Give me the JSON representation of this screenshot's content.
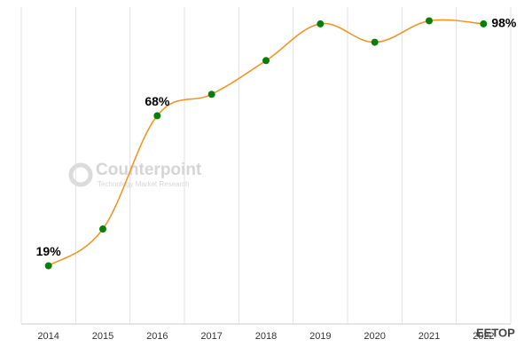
{
  "chart_data": {
    "type": "line",
    "categories": [
      "2014",
      "2015",
      "2016",
      "2017",
      "2018",
      "2019",
      "2020",
      "2021",
      "2022"
    ],
    "values": [
      19,
      31,
      68,
      75,
      86,
      98,
      92,
      99,
      98
    ],
    "value_labels": [
      "19%",
      null,
      "68%",
      null,
      null,
      null,
      null,
      null,
      "98%"
    ],
    "line_color": "#f39019",
    "marker_color": "#0a7d0a",
    "ylim": [
      0,
      100
    ],
    "grid": true,
    "watermark": {
      "brand": "Counterpoint",
      "tagline": "Technology Market Research",
      "source": "EETOP"
    }
  }
}
